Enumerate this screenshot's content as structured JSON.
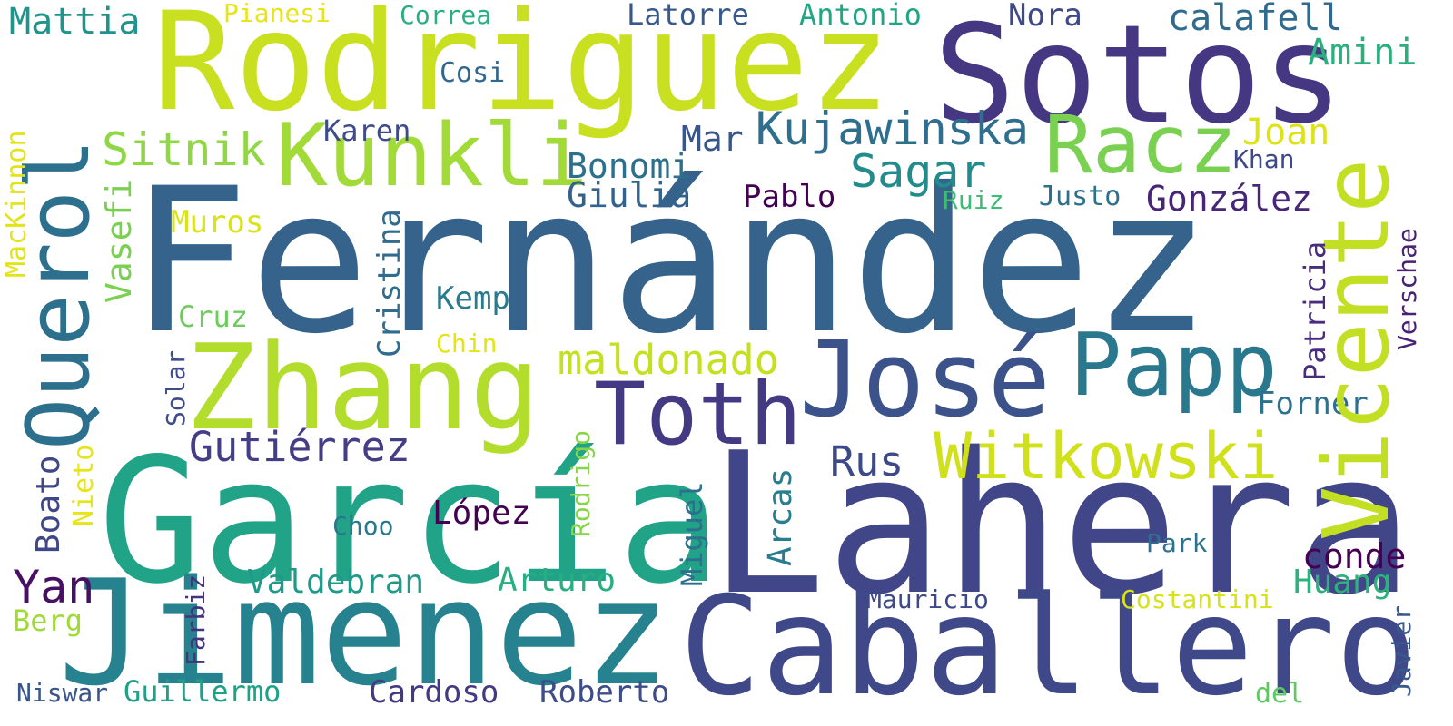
{
  "words": [
    {
      "text": "Fernández",
      "color": "#35638c"
    },
    {
      "text": "Rodriguez",
      "color": "#c9e020"
    },
    {
      "text": "Sotos",
      "color": "#453781"
    },
    {
      "text": "García",
      "color": "#20a387"
    },
    {
      "text": "Lahera",
      "color": "#404688"
    },
    {
      "text": "Jimenez",
      "color": "#26828e"
    },
    {
      "text": "Caballero",
      "color": "#3f4889"
    },
    {
      "text": "Vicente",
      "color": "#c2df23"
    },
    {
      "text": "Querol",
      "color": "#2d708e"
    },
    {
      "text": "Kunkli",
      "color": "#a2da37"
    },
    {
      "text": "Zhang",
      "color": "#b2dd2d"
    },
    {
      "text": "José",
      "color": "#3b528b"
    },
    {
      "text": "Racz",
      "color": "#7ad151"
    },
    {
      "text": "Papp",
      "color": "#2a788e"
    },
    {
      "text": "Toth",
      "color": "#443983"
    },
    {
      "text": "Witkowski",
      "color": "#d0e11c"
    },
    {
      "text": "Kujawinska",
      "color": "#2e6e8e"
    },
    {
      "text": "Gutiérrez",
      "color": "#433e85"
    },
    {
      "text": "Sitnik",
      "color": "#8fd744"
    },
    {
      "text": "Sagar",
      "color": "#228c8d"
    },
    {
      "text": "maldonado",
      "color": "#c5e021"
    },
    {
      "text": "Mattia",
      "color": "#1f948c"
    },
    {
      "text": "calafell",
      "color": "#306a8e"
    },
    {
      "text": "Bonomi",
      "color": "#2d708e"
    },
    {
      "text": "Giulia",
      "color": "#33638d"
    },
    {
      "text": "Pablo",
      "color": "#440154"
    },
    {
      "text": "González",
      "color": "#482677"
    },
    {
      "text": "Justo",
      "color": "#2d708e"
    },
    {
      "text": "Ruiz",
      "color": "#3dbc74"
    },
    {
      "text": "Khan",
      "color": "#3e4989"
    },
    {
      "text": "Joan",
      "color": "#dde318"
    },
    {
      "text": "Amini",
      "color": "#2ab07f"
    },
    {
      "text": "Nora",
      "color": "#3e4a89"
    },
    {
      "text": "Antonio",
      "color": "#21a685"
    },
    {
      "text": "Latorre",
      "color": "#38598c"
    },
    {
      "text": "Correa",
      "color": "#29af7f"
    },
    {
      "text": "Pianesi",
      "color": "#e7e419"
    },
    {
      "text": "Cosi",
      "color": "#31688e"
    },
    {
      "text": "Karen",
      "color": "#3e4c8a"
    },
    {
      "text": "Mar",
      "color": "#39568c"
    },
    {
      "text": "Muros",
      "color": "#dae319"
    },
    {
      "text": "Kemp",
      "color": "#297b8e"
    },
    {
      "text": "Cruz",
      "color": "#6ccd5a"
    },
    {
      "text": "Chin",
      "color": "#e5e419"
    },
    {
      "text": "Rus",
      "color": "#3e4989"
    },
    {
      "text": "Forner",
      "color": "#2c728e"
    },
    {
      "text": "López",
      "color": "#440154"
    },
    {
      "text": "Choo",
      "color": "#2a788e"
    },
    {
      "text": "Boato",
      "color": "#3f4788"
    },
    {
      "text": "Yan",
      "color": "#471063"
    },
    {
      "text": "Valdebran",
      "color": "#1f9a8a"
    },
    {
      "text": "Arturo",
      "color": "#29af7f"
    },
    {
      "text": "Park",
      "color": "#2c718e"
    },
    {
      "text": "conde",
      "color": "#440154"
    },
    {
      "text": "Huang",
      "color": "#2db27d"
    },
    {
      "text": "Mauricio",
      "color": "#3e4989"
    },
    {
      "text": "Costantini",
      "color": "#d8e219"
    },
    {
      "text": "Berg",
      "color": "#a0da39"
    },
    {
      "text": "Niswar",
      "color": "#39558c"
    },
    {
      "text": "Guillermo",
      "color": "#1fa188"
    },
    {
      "text": "Cardoso",
      "color": "#443a83"
    },
    {
      "text": "Roberto",
      "color": "#3e4c8a"
    },
    {
      "text": "del",
      "color": "#5ec962"
    },
    {
      "text": "MacKinnon",
      "color": "#e3e418"
    },
    {
      "text": "Vasefi",
      "color": "#7ad151"
    },
    {
      "text": "Cristina",
      "color": "#2f6c8e"
    },
    {
      "text": "Solar",
      "color": "#3e4c8a"
    },
    {
      "text": "Nieto",
      "color": "#e7e419"
    },
    {
      "text": "Rodrigo",
      "color": "#86d549"
    },
    {
      "text": "Miguel",
      "color": "#2d708e"
    },
    {
      "text": "Arcas",
      "color": "#287d8e"
    },
    {
      "text": "Farbiz",
      "color": "#46337e"
    },
    {
      "text": "Patricia",
      "color": "#472d7b"
    },
    {
      "text": "Verschae",
      "color": "#482173"
    },
    {
      "text": "Javier",
      "color": "#38598c"
    }
  ]
}
